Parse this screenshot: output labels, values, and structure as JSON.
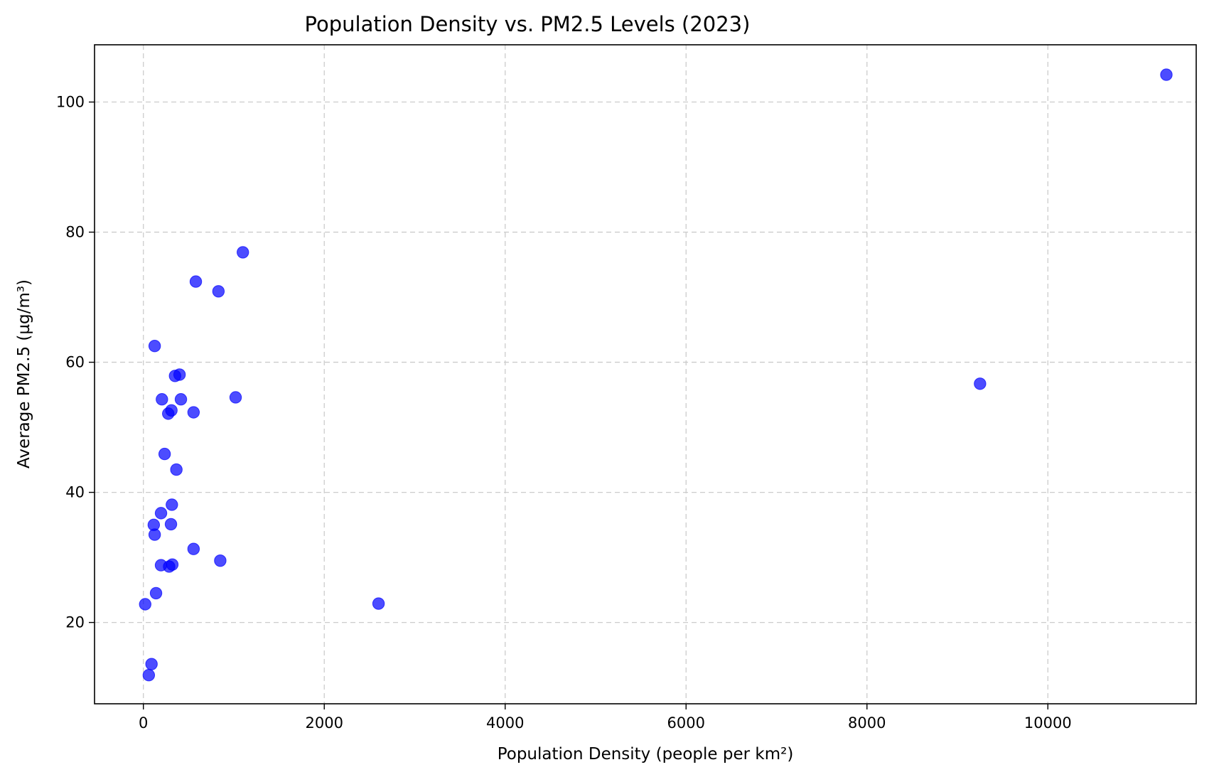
{
  "chart_data": {
    "type": "scatter",
    "title": "Population Density vs. PM2.5 Levels (2023)",
    "xlabel": "Population Density (people per km²)",
    "ylabel": "Average PM2.5 (µg/m³)",
    "xlim": [
      -540,
      11640
    ],
    "ylim": [
      7.5,
      108.8
    ],
    "xticks": [
      0,
      2000,
      4000,
      6000,
      8000,
      10000
    ],
    "yticks": [
      20,
      40,
      60,
      80,
      100
    ],
    "grid": true,
    "marker_color": "#0000ff",
    "marker_alpha": 0.7,
    "points": [
      {
        "x": 11310,
        "y": 104.2
      },
      {
        "x": 9250,
        "y": 56.7
      },
      {
        "x": 2600,
        "y": 22.9
      },
      {
        "x": 1100,
        "y": 76.9
      },
      {
        "x": 1020,
        "y": 54.6
      },
      {
        "x": 850,
        "y": 29.5
      },
      {
        "x": 830,
        "y": 70.9
      },
      {
        "x": 580,
        "y": 72.4
      },
      {
        "x": 555,
        "y": 52.3
      },
      {
        "x": 555,
        "y": 31.3
      },
      {
        "x": 415,
        "y": 54.3
      },
      {
        "x": 400,
        "y": 58.1
      },
      {
        "x": 365,
        "y": 43.5
      },
      {
        "x": 350,
        "y": 57.9
      },
      {
        "x": 320,
        "y": 28.9
      },
      {
        "x": 315,
        "y": 38.1
      },
      {
        "x": 310,
        "y": 52.6
      },
      {
        "x": 305,
        "y": 35.1
      },
      {
        "x": 285,
        "y": 28.6
      },
      {
        "x": 275,
        "y": 52.1
      },
      {
        "x": 235,
        "y": 45.9
      },
      {
        "x": 205,
        "y": 54.3
      },
      {
        "x": 195,
        "y": 36.8
      },
      {
        "x": 195,
        "y": 28.8
      },
      {
        "x": 140,
        "y": 24.5
      },
      {
        "x": 125,
        "y": 62.5
      },
      {
        "x": 125,
        "y": 33.5
      },
      {
        "x": 115,
        "y": 35.0
      },
      {
        "x": 90,
        "y": 13.6
      },
      {
        "x": 60,
        "y": 11.9
      },
      {
        "x": 20,
        "y": 22.8
      }
    ]
  }
}
